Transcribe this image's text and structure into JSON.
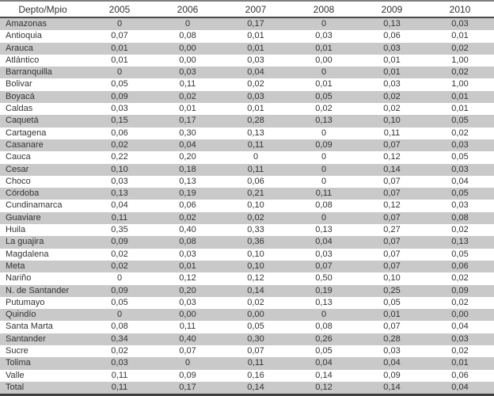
{
  "colors": {
    "row_shade": "#c9c9c9",
    "rule_top": "#7e7e7e",
    "rule_header": "#4a4a4a",
    "rule_bottom": "#3f3f3f",
    "text": "#333333"
  },
  "chart_data": {
    "type": "table",
    "title": "",
    "columns": [
      "Depto/Mpio",
      "2005",
      "2006",
      "2007",
      "2008",
      "2009",
      "2010"
    ],
    "rows": [
      [
        "Amazonas",
        "0",
        "0",
        "0,17",
        "0",
        "0,13",
        "0,03"
      ],
      [
        "Antioquia",
        "0,07",
        "0,08",
        "0,01",
        "0,03",
        "0,06",
        "0,01"
      ],
      [
        "Arauca",
        "0,01",
        "0,00",
        "0,01",
        "0,01",
        "0,03",
        "0,02"
      ],
      [
        "Atlántico",
        "0,01",
        "0,00",
        "0,03",
        "0,00",
        "0,01",
        "1,00"
      ],
      [
        "Barranquilla",
        "0",
        "0,03",
        "0,04",
        "0",
        "0,01",
        "0,02"
      ],
      [
        "Bolivar",
        "0,05",
        "0,11",
        "0,02",
        "0,01",
        "0,03",
        "1,00"
      ],
      [
        "Boyacá",
        "0,09",
        "0,02",
        "0,03",
        "0,05",
        "0,02",
        "0,01"
      ],
      [
        "Caldas",
        "0,03",
        "0,01",
        "0,01",
        "0,02",
        "0,02",
        "0,01"
      ],
      [
        "Caquetá",
        "0,15",
        "0,17",
        "0,28",
        "0,13",
        "0,10",
        "0,05"
      ],
      [
        "Cartagena",
        "0,06",
        "0,30",
        "0,13",
        "0",
        "0,11",
        "0,02"
      ],
      [
        "Casanare",
        "0,02",
        "0,04",
        "0,11",
        "0,09",
        "0,07",
        "0,03"
      ],
      [
        "Cauca",
        "0,22",
        "0,20",
        "0",
        "0",
        "0,12",
        "0,05"
      ],
      [
        "Cesar",
        "0,10",
        "0,18",
        "0,11",
        "0",
        "0,14",
        "0,03"
      ],
      [
        "Choco",
        "0,03",
        "0,13",
        "0,06",
        "0",
        "0,07",
        "0,04"
      ],
      [
        "Córdoba",
        "0,13",
        "0,19",
        "0,21",
        "0,11",
        "0,07",
        "0,05"
      ],
      [
        "Cundinamarca",
        "0,04",
        "0,06",
        "0,10",
        "0,08",
        "0,12",
        "0,03"
      ],
      [
        "Guaviare",
        "0,11",
        "0,02",
        "0,02",
        "0",
        "0,07",
        "0,08"
      ],
      [
        "Huila",
        "0,35",
        "0,40",
        "0,33",
        "0,13",
        "0,27",
        "0,02"
      ],
      [
        "La guajira",
        "0,09",
        "0,08",
        "0,36",
        "0,04",
        "0,07",
        "0,13"
      ],
      [
        "Magdalena",
        "0,02",
        "0,03",
        "0,10",
        "0,03",
        "0,07",
        "0,05"
      ],
      [
        "Meta",
        "0,02",
        "0,01",
        "0,10",
        "0,07",
        "0,07",
        "0,06"
      ],
      [
        "Nariño",
        "0",
        "0,12",
        "0,12",
        "0,50",
        "0,10",
        "0,02"
      ],
      [
        "N. de Santander",
        "0,09",
        "0,20",
        "0,14",
        "0,19",
        "0,25",
        "0,09"
      ],
      [
        "Putumayo",
        "0,05",
        "0,03",
        "0,02",
        "0,13",
        "0,05",
        "0,02"
      ],
      [
        "Quindío",
        "0",
        "0,00",
        "0,00",
        "0",
        "0,01",
        "0,00"
      ],
      [
        "Santa Marta",
        "0,08",
        "0,11",
        "0,05",
        "0,08",
        "0,07",
        "0,04"
      ],
      [
        "Santander",
        "0,34",
        "0,40",
        "0,30",
        "0,26",
        "0,28",
        "0,03"
      ],
      [
        "Sucre",
        "0,02",
        "0,07",
        "0,07",
        "0,05",
        "0,03",
        "0,02"
      ],
      [
        "Tolima",
        "0,03",
        "0",
        "0,11",
        "0,04",
        "0,04",
        "0,01"
      ],
      [
        "Valle",
        "0,11",
        "0,09",
        "0,16",
        "0,14",
        "0,09",
        "0,06"
      ],
      [
        "Total",
        "0,11",
        "0,17",
        "0,14",
        "0,12",
        "0,14",
        "0,04"
      ]
    ],
    "layout_hints": {
      "first_column_align": "left",
      "value_align": "center",
      "shaded_rows": "alternating starting with first data row",
      "decimal_separator": ","
    }
  }
}
